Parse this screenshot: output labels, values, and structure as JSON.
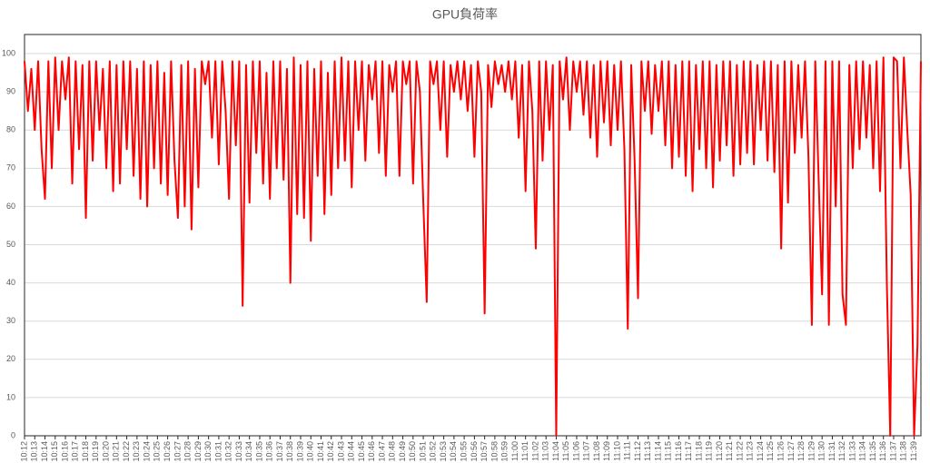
{
  "chart_data": {
    "type": "line",
    "title": "GPU負荷率",
    "color": "#ff0000",
    "grid": true,
    "ylim": [
      0,
      105
    ],
    "yticks": [
      0,
      10,
      20,
      30,
      40,
      50,
      60,
      70,
      80,
      90,
      100
    ],
    "categories": [
      "10:12",
      null,
      null,
      "10:13",
      null,
      null,
      "10:14",
      null,
      null,
      "10:15",
      null,
      null,
      "10:16",
      null,
      null,
      "10:17",
      null,
      null,
      "10:18",
      null,
      null,
      "10:19",
      null,
      null,
      "10:20",
      null,
      null,
      "10:21",
      null,
      null,
      "10:22",
      null,
      null,
      "10:23",
      null,
      null,
      "10:24",
      null,
      null,
      "10:25",
      null,
      null,
      "10:26",
      null,
      null,
      "10:27",
      null,
      null,
      "10:28",
      null,
      null,
      "10:29",
      null,
      null,
      "10:30",
      null,
      null,
      "10:31",
      null,
      null,
      "10:32",
      null,
      null,
      "10:33",
      null,
      null,
      "10:34",
      null,
      null,
      "10:35",
      null,
      null,
      "10:36",
      null,
      null,
      "10:37",
      null,
      null,
      "10:38",
      null,
      null,
      "10:39",
      null,
      null,
      "10:40",
      null,
      null,
      "10:41",
      null,
      null,
      "10:42",
      null,
      null,
      "10:43",
      null,
      null,
      "10:44",
      null,
      null,
      "10:45",
      null,
      null,
      "10:46",
      null,
      null,
      "10:47",
      null,
      null,
      "10:48",
      null,
      null,
      "10:49",
      null,
      null,
      "10:50",
      null,
      null,
      "10:51",
      null,
      null,
      "10:52",
      null,
      null,
      "10:53",
      null,
      null,
      "10:54",
      null,
      null,
      "10:55",
      null,
      null,
      "10:56",
      null,
      null,
      "10:57",
      null,
      null,
      "10:58",
      null,
      null,
      "10:59",
      null,
      null,
      "11:00",
      null,
      null,
      "11:01",
      null,
      null,
      "11:02",
      null,
      null,
      "11:03",
      null,
      null,
      "11:04",
      null,
      null,
      "11:05",
      null,
      null,
      "11:06",
      null,
      null,
      "11:07",
      null,
      null,
      "11:08",
      null,
      null,
      "11:09",
      null,
      null,
      "11:10",
      null,
      null,
      "11:11",
      null,
      null,
      "11:12",
      null,
      null,
      "11:13",
      null,
      null,
      "11:14",
      null,
      null,
      "11:15",
      null,
      null,
      "11:16",
      null,
      null,
      "11:17",
      null,
      null,
      "11:18",
      null,
      null,
      "11:19",
      null,
      null,
      "11:20",
      null,
      null,
      "11:21",
      null,
      null,
      "11:22",
      null,
      null,
      "11:23",
      null,
      null,
      "11:24",
      null,
      null,
      "11:25",
      null,
      null,
      "11:26",
      null,
      null,
      "11:27",
      null,
      null,
      "11:28",
      null,
      null,
      "11:29",
      null,
      null,
      "11:30",
      null,
      null,
      "11:31",
      null,
      null,
      "11:32",
      null,
      null,
      "11:33",
      null,
      null,
      "11:34",
      null,
      null,
      "11:35",
      null,
      null,
      "11:36",
      null,
      null,
      "11:37",
      null,
      null,
      "11:38",
      null,
      null,
      "11:39",
      null,
      null
    ],
    "values": [
      98,
      85,
      96,
      80,
      98,
      75,
      62,
      98,
      70,
      99,
      80,
      98,
      88,
      99,
      66,
      98,
      75,
      97,
      57,
      98,
      72,
      98,
      80,
      96,
      70,
      98,
      64,
      97,
      66,
      98,
      75,
      98,
      68,
      96,
      62,
      98,
      60,
      97,
      70,
      98,
      66,
      95,
      63,
      98,
      72,
      57,
      97,
      60,
      98,
      54,
      96,
      65,
      98,
      92,
      98,
      78,
      98,
      71,
      98,
      85,
      62,
      98,
      76,
      98,
      34,
      97,
      61,
      98,
      74,
      98,
      66,
      95,
      62,
      98,
      70,
      98,
      67,
      96,
      40,
      99,
      58,
      97,
      57,
      98,
      51,
      96,
      68,
      98,
      58,
      95,
      63,
      98,
      70,
      99,
      72,
      98,
      65,
      98,
      80,
      98,
      72,
      97,
      88,
      98,
      74,
      98,
      68,
      97,
      90,
      98,
      68,
      98,
      92,
      98,
      66,
      98,
      90,
      61,
      35,
      98,
      92,
      98,
      80,
      98,
      73,
      97,
      90,
      98,
      88,
      98,
      85,
      97,
      73,
      98,
      90,
      32,
      97,
      86,
      98,
      92,
      97,
      90,
      98,
      88,
      98,
      78,
      97,
      64,
      98,
      85,
      49,
      98,
      72,
      98,
      80,
      97,
      0,
      98,
      88,
      99,
      80,
      98,
      90,
      98,
      84,
      98,
      78,
      97,
      73,
      98,
      82,
      98,
      76,
      97,
      80,
      98,
      75,
      28,
      97,
      72,
      36,
      98,
      85,
      98,
      79,
      97,
      85,
      98,
      76,
      98,
      70,
      97,
      73,
      98,
      68,
      98,
      64,
      97,
      75,
      98,
      70,
      98,
      65,
      97,
      72,
      98,
      76,
      98,
      68,
      97,
      71,
      98,
      74,
      98,
      71,
      97,
      80,
      98,
      72,
      98,
      69,
      97,
      49,
      98,
      61,
      98,
      74,
      97,
      78,
      98,
      73,
      29,
      98,
      67,
      37,
      98,
      29,
      98,
      60,
      98,
      37,
      29,
      97,
      70,
      98,
      75,
      98,
      78,
      97,
      70,
      98,
      64,
      99,
      40,
      0,
      99,
      98,
      70,
      99,
      80,
      63,
      0,
      24,
      98
    ]
  }
}
